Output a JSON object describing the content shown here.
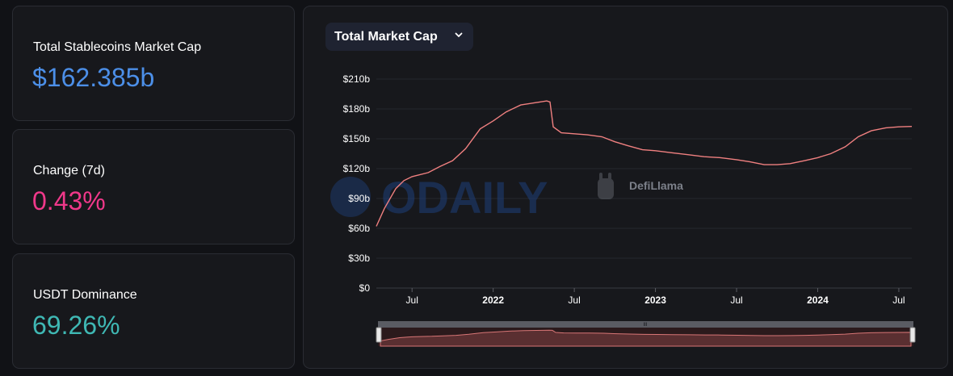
{
  "stats": [
    {
      "label": "Total Stablecoins Market Cap",
      "value": "$162.385b",
      "color": "#4c8fe8"
    },
    {
      "label": "Change (7d)",
      "value": "0.43%",
      "color": "#f0388a"
    },
    {
      "label": "USDT Dominance",
      "value": "69.26%",
      "color": "#3fb8b4"
    }
  ],
  "chart_selector": {
    "label": "Total Market Cap",
    "icon": "chevron-down-icon"
  },
  "watermarks": {
    "odaily": "ODAILY",
    "defillama": "DefiLlama"
  },
  "slider": {
    "handle_grip": "III"
  },
  "chart_data": {
    "type": "area",
    "title": "Total Market Cap",
    "ylabel": "",
    "xlabel": "",
    "y_ticks": [
      {
        "value": 0,
        "label": "$0"
      },
      {
        "value": 30,
        "label": "$30b"
      },
      {
        "value": 60,
        "label": "$60b"
      },
      {
        "value": 90,
        "label": "$90b"
      },
      {
        "value": 120,
        "label": "$120b"
      },
      {
        "value": 150,
        "label": "$150b"
      },
      {
        "value": 180,
        "label": "$180b"
      },
      {
        "value": 210,
        "label": "$210b"
      }
    ],
    "ylim": [
      0,
      210
    ],
    "xlim": [
      2021.28,
      2024.58
    ],
    "x_ticks": [
      {
        "value": 2021.5,
        "label": "Jul",
        "bold": false
      },
      {
        "value": 2022.0,
        "label": "2022",
        "bold": true
      },
      {
        "value": 2022.5,
        "label": "Jul",
        "bold": false
      },
      {
        "value": 2023.0,
        "label": "2023",
        "bold": true
      },
      {
        "value": 2023.5,
        "label": "Jul",
        "bold": false
      },
      {
        "value": 2024.0,
        "label": "2024",
        "bold": true
      },
      {
        "value": 2024.5,
        "label": "Jul",
        "bold": false
      }
    ],
    "series": [
      {
        "name": "Total Stablecoins Market Cap",
        "color": "#f08080",
        "points": [
          [
            2021.28,
            62
          ],
          [
            2021.33,
            80
          ],
          [
            2021.4,
            100
          ],
          [
            2021.45,
            108
          ],
          [
            2021.5,
            112
          ],
          [
            2021.6,
            116
          ],
          [
            2021.67,
            122
          ],
          [
            2021.75,
            128
          ],
          [
            2021.83,
            140
          ],
          [
            2021.92,
            160
          ],
          [
            2022.0,
            168
          ],
          [
            2022.08,
            177
          ],
          [
            2022.17,
            184
          ],
          [
            2022.25,
            186
          ],
          [
            2022.33,
            188
          ],
          [
            2022.35,
            187
          ],
          [
            2022.37,
            162
          ],
          [
            2022.42,
            156
          ],
          [
            2022.5,
            155
          ],
          [
            2022.58,
            154
          ],
          [
            2022.67,
            152
          ],
          [
            2022.75,
            147
          ],
          [
            2022.83,
            143
          ],
          [
            2022.92,
            139
          ],
          [
            2023.0,
            138
          ],
          [
            2023.1,
            136
          ],
          [
            2023.2,
            134
          ],
          [
            2023.3,
            132
          ],
          [
            2023.4,
            131
          ],
          [
            2023.5,
            129
          ],
          [
            2023.58,
            127
          ],
          [
            2023.67,
            124
          ],
          [
            2023.75,
            124
          ],
          [
            2023.83,
            125
          ],
          [
            2023.92,
            128
          ],
          [
            2024.0,
            131
          ],
          [
            2024.08,
            135
          ],
          [
            2024.17,
            142
          ],
          [
            2024.25,
            152
          ],
          [
            2024.33,
            158
          ],
          [
            2024.42,
            161
          ],
          [
            2024.5,
            162
          ],
          [
            2024.58,
            162.4
          ]
        ]
      }
    ]
  }
}
